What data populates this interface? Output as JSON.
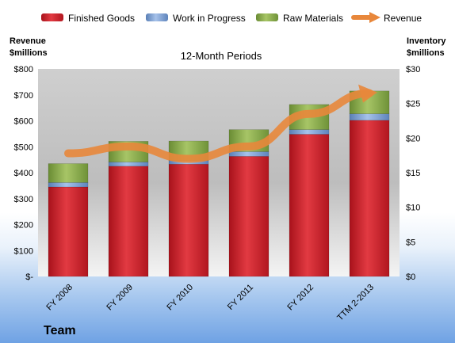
{
  "chart_data": {
    "type": "bar",
    "subtitle": "12-Month Periods",
    "categories": [
      "FY 2008",
      "FY 2009",
      "FY 2010",
      "FY 2011",
      "FY 2012",
      "TTM 2-2013"
    ],
    "series": [
      {
        "name": "Finished Goods",
        "axis": "left",
        "color": "#d9252f",
        "values": [
          345,
          425,
          433,
          463,
          548,
          602
        ]
      },
      {
        "name": "Work in Progress",
        "axis": "left",
        "color": "#7ea3d8",
        "values": [
          17,
          16,
          14,
          18,
          18,
          25
        ]
      },
      {
        "name": "Raw Materials",
        "axis": "left",
        "color": "#8db04c",
        "values": [
          73,
          80,
          75,
          85,
          97,
          88
        ]
      },
      {
        "name": "Revenue",
        "axis": "right",
        "type": "line",
        "color": "#e8873b",
        "values": [
          17.8,
          18.8,
          17.0,
          18.8,
          23.5,
          26.5
        ]
      }
    ],
    "y_left": {
      "label_line1": "Revenue",
      "label_line2": "$millions",
      "range": [
        0,
        800
      ],
      "ticks": [
        "$-",
        "$100",
        "$200",
        "$300",
        "$400",
        "$500",
        "$600",
        "$700",
        "$800"
      ]
    },
    "y_right": {
      "label_line1": "Inventory",
      "label_line2": "$millions",
      "range": [
        0,
        30
      ],
      "ticks": [
        "$0",
        "$5",
        "$10",
        "$15",
        "$20",
        "$25",
        "$30"
      ]
    },
    "grid": false,
    "legend_position": "top",
    "footer": "Team"
  }
}
